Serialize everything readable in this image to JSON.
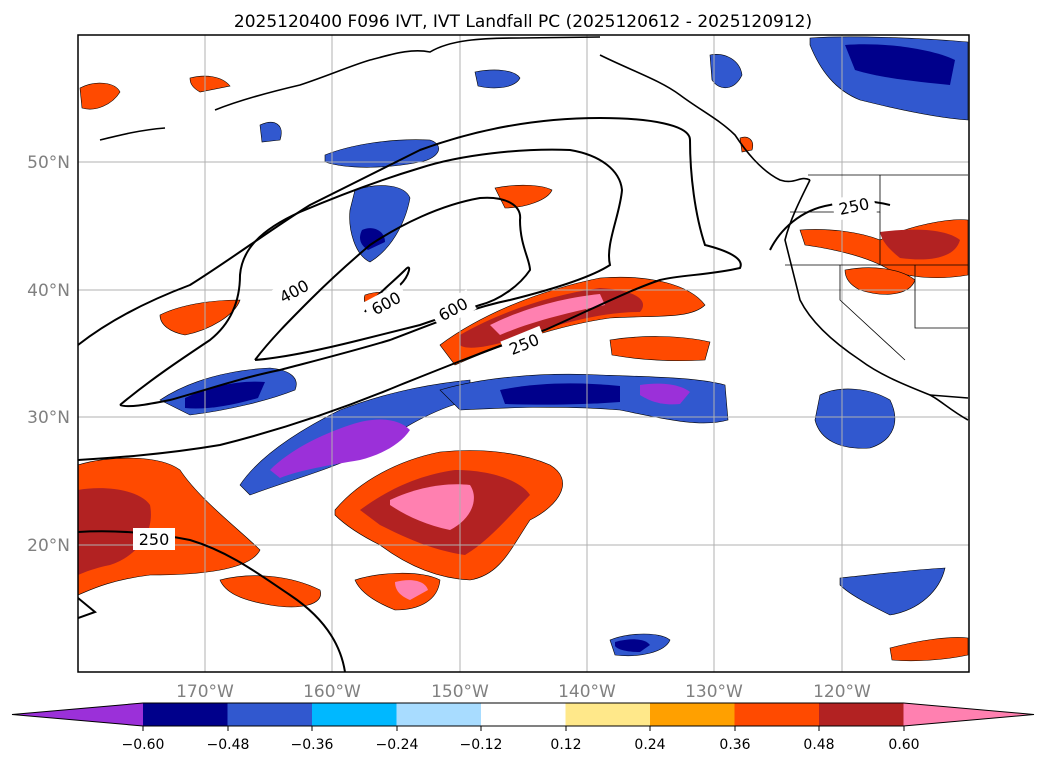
{
  "title": "2025120400 F096 IVT, IVT Landfall PC (2025120612 - 2025120912)",
  "map": {
    "lat_labels": [
      "50°N",
      "40°N",
      "30°N",
      "20°N"
    ],
    "lon_labels": [
      "170°W",
      "160°W",
      "150°W",
      "140°W",
      "130°W",
      "120°W"
    ],
    "contour_labels": [
      "400",
      "600",
      "600",
      "250",
      "250",
      "250"
    ]
  },
  "colorbar": {
    "ticks": [
      "−0.60",
      "−0.48",
      "−0.36",
      "−0.24",
      "−0.12",
      "0.12",
      "0.24",
      "0.36",
      "0.48",
      "0.60"
    ],
    "colors": [
      "#9b30d9",
      "#00008b",
      "#3158cf",
      "#00b8ff",
      "#a8dcff",
      "#ffffff",
      "#ffe88a",
      "#ffa000",
      "#ff4a00",
      "#b22222",
      "#ff80b0"
    ]
  }
}
